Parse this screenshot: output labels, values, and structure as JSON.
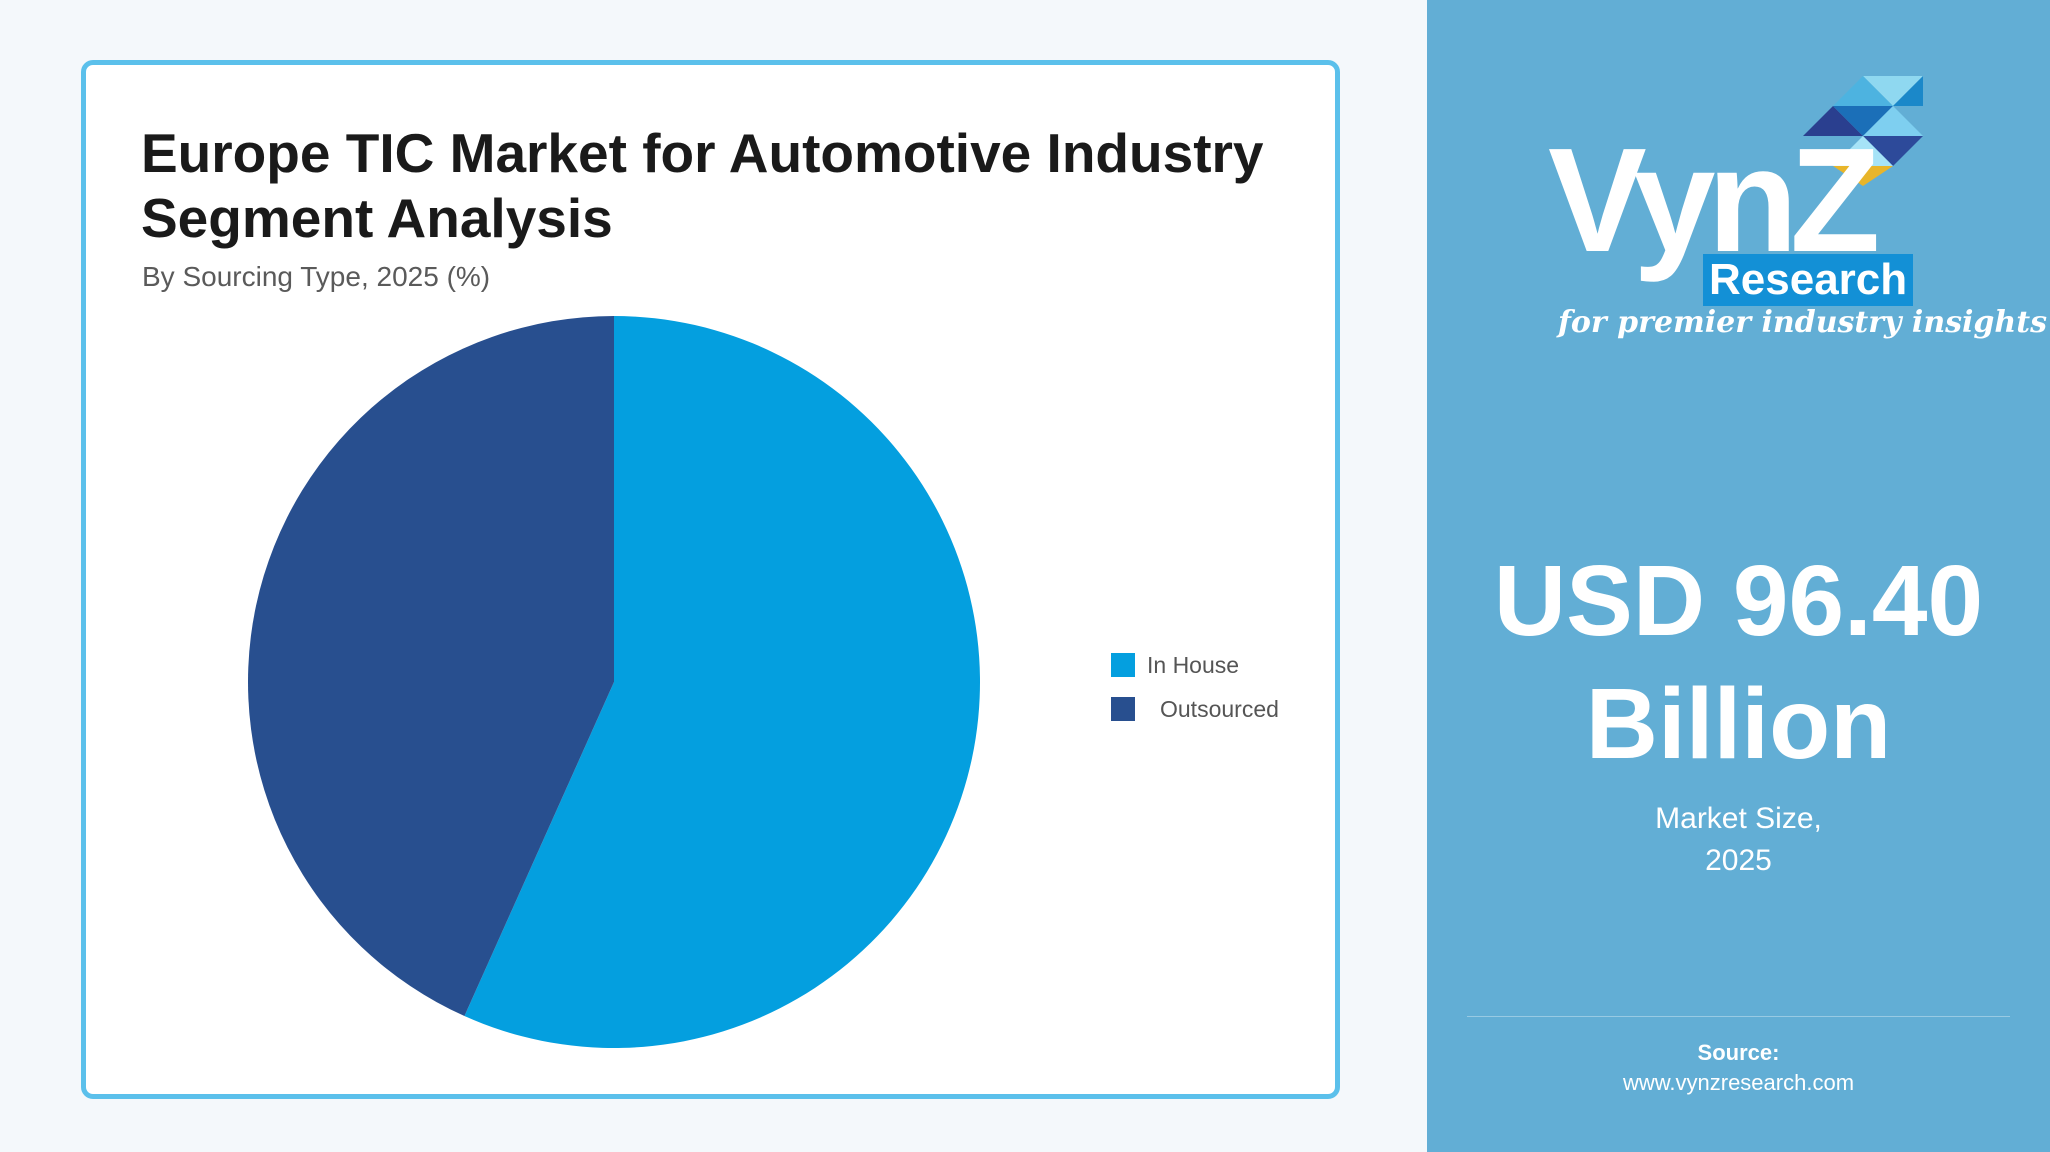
{
  "chart_data": {
    "type": "pie",
    "title": "Europe TIC Market for Automotive Industry Segment Analysis",
    "subtitle": "By Sourcing Type, 2025 (%)",
    "categories": [
      "In House",
      "Outsourced"
    ],
    "values": [
      56.7,
      43.3
    ],
    "colors": [
      "#049fdf",
      "#284f8f"
    ],
    "start_angle_deg": 0,
    "direction": "clockwise",
    "legend_position": "right"
  },
  "sidebar": {
    "logo": {
      "wordmark": "VynZ",
      "research": "Research",
      "tagline": "for premier industry insights"
    },
    "market_value_line1": "USD 96.40",
    "market_value_line2": "Billion",
    "market_caption_line1": "Market Size,",
    "market_caption_line2": "2025",
    "source_label": "Source:",
    "source_url": "www.vynzresearch.com"
  },
  "colors": {
    "panel_bg": "#62aed5",
    "card_border": "#5bc0eb",
    "page_bg": "#f4f8fb",
    "research_badge": "#1390d6"
  }
}
